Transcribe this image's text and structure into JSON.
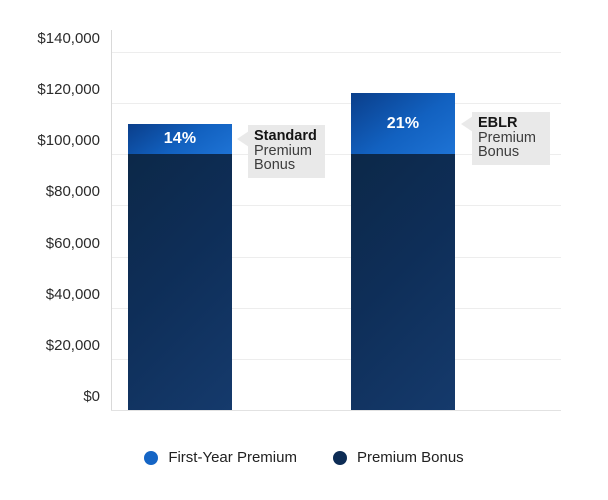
{
  "chart_data": {
    "type": "bar",
    "subtype": "stacked",
    "title": "",
    "xlabel": "",
    "ylabel": "",
    "categories": [
      "Standard Premium Bonus",
      "EBLR Premium Bonus"
    ],
    "series": [
      {
        "name": "Premium Bonus",
        "color": "#0d2c55",
        "values": [
          100000,
          100000
        ]
      },
      {
        "name": "First-Year Premium",
        "color": "#1565c5",
        "values": [
          12000,
          24000
        ]
      }
    ],
    "totals_depicted": [
      112000,
      124000
    ],
    "bar_labels": [
      "14%",
      "21%"
    ],
    "ylim": [
      0,
      140000
    ],
    "ytick_step": 20000,
    "ytick_values": [
      0,
      20000,
      40000,
      60000,
      80000,
      100000,
      120000,
      140000
    ],
    "ytick_labels": [
      "$0",
      "$20,000",
      "$40,000",
      "$60,000",
      "$80,000",
      "$100,000",
      "$120,000",
      "$140,000"
    ],
    "grid": true,
    "legend_position": "bottom"
  },
  "callouts": [
    {
      "title": "Standard",
      "line2": "Premium",
      "line3": "Bonus"
    },
    {
      "title": "EBLR",
      "line2": "Premium",
      "line3": "Bonus"
    }
  ],
  "legend": [
    {
      "label": "First-Year Premium",
      "color": "#1565c5"
    },
    {
      "label": "Premium Bonus",
      "color": "#0d2c55"
    }
  ],
  "colors": {
    "bar_cap_gradient_start": "#0a3e8a",
    "bar_cap_gradient_end": "#1e73d5",
    "bar_base_gradient_start": "#0c2848",
    "bar_base_gradient_end": "#153a6c",
    "gridline": "#ededed",
    "callout_background": "#e9e9e9",
    "percent_label_text": "#ffffff"
  }
}
